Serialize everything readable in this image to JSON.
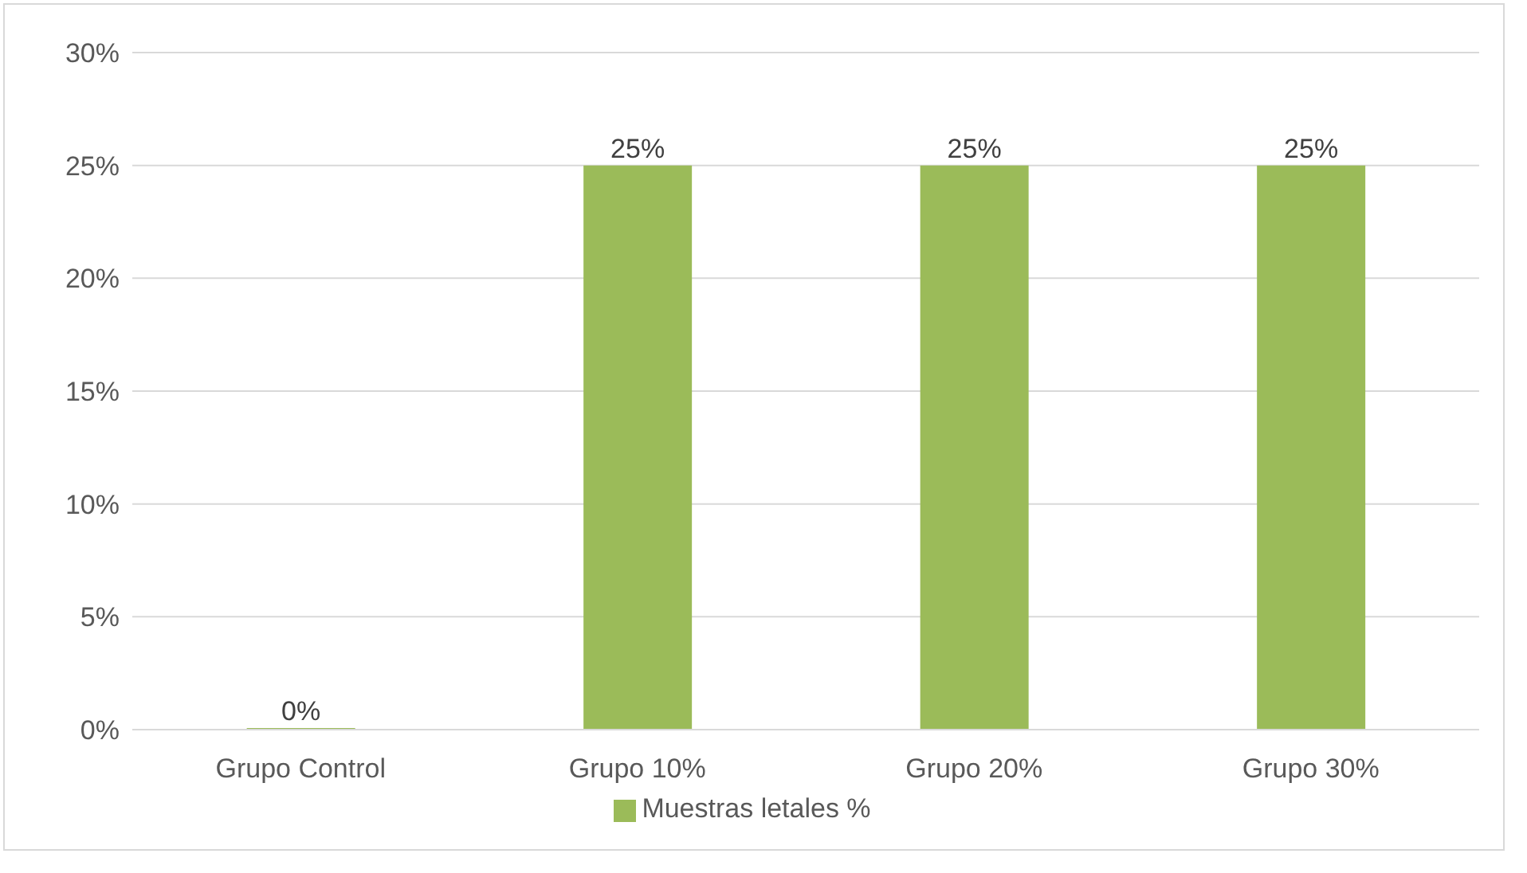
{
  "chart_data": {
    "type": "bar",
    "categories": [
      "Grupo Control",
      "Grupo 10%",
      "Grupo 20%",
      "Grupo 30%"
    ],
    "series": [
      {
        "name": "Muestras letales %",
        "color": "#9bbb59",
        "values": [
          0,
          25,
          25,
          25
        ],
        "value_labels": [
          "0%",
          "25%",
          "25%",
          "25%"
        ]
      }
    ],
    "ylim": [
      0,
      30
    ],
    "yticks": [
      {
        "value": 0,
        "label": "0%"
      },
      {
        "value": 5,
        "label": "5%"
      },
      {
        "value": 10,
        "label": "10%"
      },
      {
        "value": 15,
        "label": "15%"
      },
      {
        "value": 20,
        "label": "20%"
      },
      {
        "value": 25,
        "label": "25%"
      },
      {
        "value": 30,
        "label": "30%"
      }
    ],
    "grid": "y",
    "legend": "bottom"
  }
}
